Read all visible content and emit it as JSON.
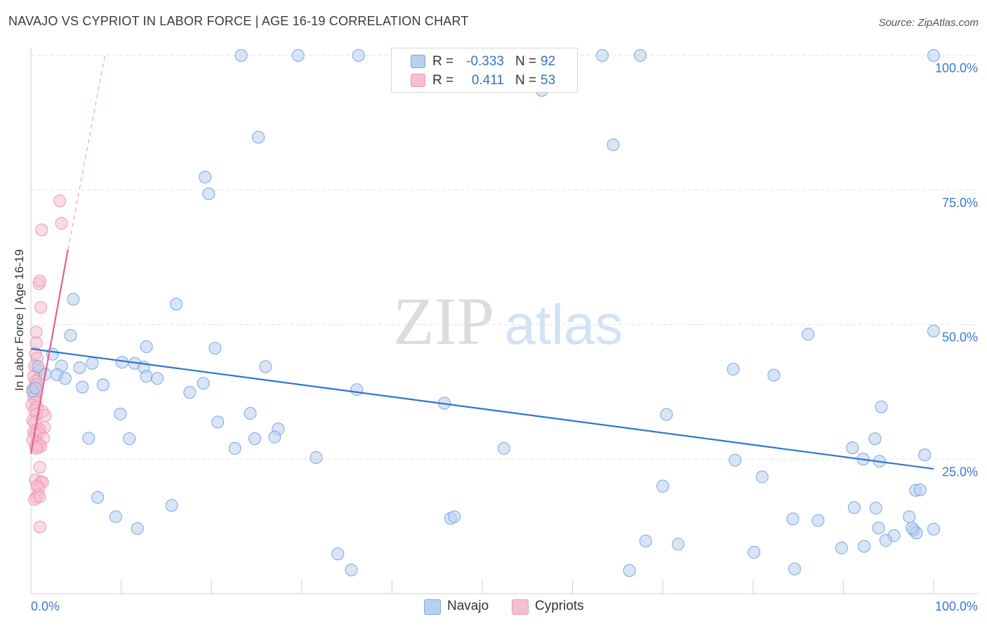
{
  "title": "NAVAJO VS CYPRIOT IN LABOR FORCE | AGE 16-19 CORRELATION CHART",
  "source": "Source: ZipAtlas.com",
  "watermark": {
    "zip": "ZIP",
    "atlas": "atlas"
  },
  "legend": {
    "navajo": {
      "r_label": "R =",
      "r_value": "-0.333",
      "n_label": "N =",
      "n_value": "92"
    },
    "cypriots": {
      "r_label": "R =",
      "r_value": "0.411",
      "n_label": "N =",
      "n_value": "53"
    }
  },
  "bottom_legend": {
    "navajo": "Navajo",
    "cypriots": "Cypriots"
  },
  "colors": {
    "navajo_fill": "#b8d0f0",
    "navajo_stroke": "#7aa6e0",
    "navajo_line": "#2f74d0",
    "cypriot_fill": "#f6bfd0",
    "cypriot_stroke": "#ec97b2",
    "cypriot_line": "#e8608d",
    "axis_text": "#3e78cf",
    "grid": "#e3e3e3"
  },
  "chart_data": {
    "type": "scatter",
    "title": "NAVAJO VS CYPRIOT IN LABOR FORCE | AGE 16-19 CORRELATION CHART",
    "xlabel": "",
    "ylabel": "In Labor Force | Age 16-19",
    "xlim": [
      0,
      100
    ],
    "ylim": [
      0,
      100
    ],
    "x_tick_labels": [
      "0.0%",
      "100.0%"
    ],
    "y_ticks": [
      25,
      50,
      75,
      100
    ],
    "y_tick_labels": [
      "25.0%",
      "50.0%",
      "75.0%",
      "100.0%"
    ],
    "series": [
      {
        "name": "Navajo",
        "r": -0.333,
        "n": 92,
        "trend": {
          "x": [
            0,
            100
          ],
          "y": [
            45.5,
            23.2
          ]
        },
        "points": [
          [
            23.3,
            100
          ],
          [
            29.6,
            100
          ],
          [
            36.3,
            100
          ],
          [
            63.3,
            100
          ],
          [
            67.5,
            100
          ],
          [
            100,
            100
          ],
          [
            56.6,
            93.5
          ],
          [
            25.2,
            84.8
          ],
          [
            64.5,
            83.4
          ],
          [
            19.3,
            77.4
          ],
          [
            19.7,
            74.3
          ],
          [
            4.7,
            54.7
          ],
          [
            16.1,
            53.8
          ],
          [
            4.4,
            48.0
          ],
          [
            12.8,
            45.9
          ],
          [
            20.4,
            45.6
          ],
          [
            2.4,
            44.5
          ],
          [
            0.8,
            42.2
          ],
          [
            3.4,
            42.3
          ],
          [
            5.4,
            42.0
          ],
          [
            6.8,
            42.8
          ],
          [
            10.1,
            43.0
          ],
          [
            11.5,
            42.8
          ],
          [
            12.5,
            42.1
          ],
          [
            1.6,
            40.8
          ],
          [
            2.9,
            40.7
          ],
          [
            3.8,
            40.0
          ],
          [
            12.8,
            40.4
          ],
          [
            14.0,
            40.0
          ],
          [
            5.7,
            38.4
          ],
          [
            8.0,
            38.8
          ],
          [
            19.1,
            39.1
          ],
          [
            17.6,
            37.4
          ],
          [
            26.0,
            42.2
          ],
          [
            36.1,
            37.9
          ],
          [
            45.8,
            35.4
          ],
          [
            86.1,
            48.2
          ],
          [
            82.3,
            40.6
          ],
          [
            77.8,
            41.7
          ],
          [
            100,
            48.8
          ],
          [
            94.2,
            34.7
          ],
          [
            70.4,
            33.3
          ],
          [
            9.9,
            33.4
          ],
          [
            20.7,
            31.9
          ],
          [
            24.3,
            33.5
          ],
          [
            27.4,
            30.6
          ],
          [
            6.4,
            28.9
          ],
          [
            10.9,
            28.8
          ],
          [
            24.8,
            28.8
          ],
          [
            27.0,
            29.1
          ],
          [
            22.6,
            27.0
          ],
          [
            52.4,
            27.0
          ],
          [
            93.5,
            28.8
          ],
          [
            91.0,
            27.1
          ],
          [
            99.0,
            25.8
          ],
          [
            94.0,
            24.6
          ],
          [
            92.2,
            25.0
          ],
          [
            78.0,
            24.8
          ],
          [
            31.6,
            25.3
          ],
          [
            81.0,
            21.7
          ],
          [
            70.0,
            20.0
          ],
          [
            7.4,
            17.9
          ],
          [
            15.6,
            16.4
          ],
          [
            98.0,
            19.2
          ],
          [
            98.5,
            19.3
          ],
          [
            9.4,
            14.3
          ],
          [
            11.8,
            12.1
          ],
          [
            46.5,
            14.0
          ],
          [
            46.9,
            14.3
          ],
          [
            84.4,
            13.9
          ],
          [
            87.2,
            13.6
          ],
          [
            91.2,
            16.0
          ],
          [
            93.6,
            15.9
          ],
          [
            97.3,
            14.3
          ],
          [
            100,
            12.0
          ],
          [
            97.8,
            11.8
          ],
          [
            98.1,
            11.3
          ],
          [
            97.6,
            12.2
          ],
          [
            95.6,
            10.8
          ],
          [
            93.9,
            12.2
          ],
          [
            94.7,
            9.9
          ],
          [
            68.1,
            9.8
          ],
          [
            71.7,
            9.2
          ],
          [
            89.8,
            8.5
          ],
          [
            92.3,
            8.8
          ],
          [
            80.1,
            7.7
          ],
          [
            34.0,
            7.4
          ],
          [
            35.5,
            4.4
          ],
          [
            66.3,
            4.3
          ],
          [
            84.6,
            4.6
          ],
          [
            0.2,
            37.6
          ],
          [
            0.5,
            38.2
          ]
        ]
      },
      {
        "name": "Cypriots",
        "r": 0.411,
        "n": 53,
        "trend_solid": {
          "x": [
            0,
            4.1
          ],
          "y": [
            26.0,
            63.9
          ]
        },
        "trend_dashed": {
          "x": [
            4.1,
            8.2
          ],
          "y": [
            63.9,
            100
          ]
        },
        "points": [
          [
            3.2,
            73.0
          ],
          [
            3.4,
            68.8
          ],
          [
            1.2,
            67.6
          ],
          [
            0.9,
            57.6
          ],
          [
            1.0,
            58.1
          ],
          [
            1.1,
            53.2
          ],
          [
            0.6,
            48.6
          ],
          [
            0.6,
            46.6
          ],
          [
            0.5,
            44.6
          ],
          [
            0.7,
            43.8
          ],
          [
            0.4,
            42.3
          ],
          [
            0.9,
            41.5
          ],
          [
            0.3,
            40.4
          ],
          [
            0.8,
            39.9
          ],
          [
            0.5,
            39.5
          ],
          [
            0.6,
            38.8
          ],
          [
            0.2,
            38.0
          ],
          [
            0.4,
            37.1
          ],
          [
            0.3,
            36.5
          ],
          [
            0.5,
            35.6
          ],
          [
            0.1,
            35.1
          ],
          [
            0.7,
            34.7
          ],
          [
            0.4,
            34.1
          ],
          [
            1.3,
            33.8
          ],
          [
            1.6,
            33.1
          ],
          [
            0.6,
            33.3
          ],
          [
            0.2,
            32.2
          ],
          [
            0.4,
            31.8
          ],
          [
            1.5,
            30.9
          ],
          [
            0.6,
            30.5
          ],
          [
            1.0,
            30.5
          ],
          [
            0.3,
            30.0
          ],
          [
            0.9,
            29.9
          ],
          [
            0.5,
            29.6
          ],
          [
            1.4,
            28.9
          ],
          [
            0.2,
            28.6
          ],
          [
            0.7,
            28.1
          ],
          [
            0.9,
            27.7
          ],
          [
            0.5,
            27.4
          ],
          [
            0.8,
            27.2
          ],
          [
            1.1,
            27.4
          ],
          [
            0.6,
            27.0
          ],
          [
            1.0,
            23.5
          ],
          [
            0.5,
            21.1
          ],
          [
            1.1,
            20.8
          ],
          [
            1.3,
            20.7
          ],
          [
            0.7,
            20.0
          ],
          [
            0.9,
            19.6
          ],
          [
            0.8,
            18.4
          ],
          [
            0.6,
            17.9
          ],
          [
            0.4,
            17.5
          ],
          [
            1.0,
            18.0
          ],
          [
            1.0,
            12.4
          ]
        ]
      }
    ]
  }
}
